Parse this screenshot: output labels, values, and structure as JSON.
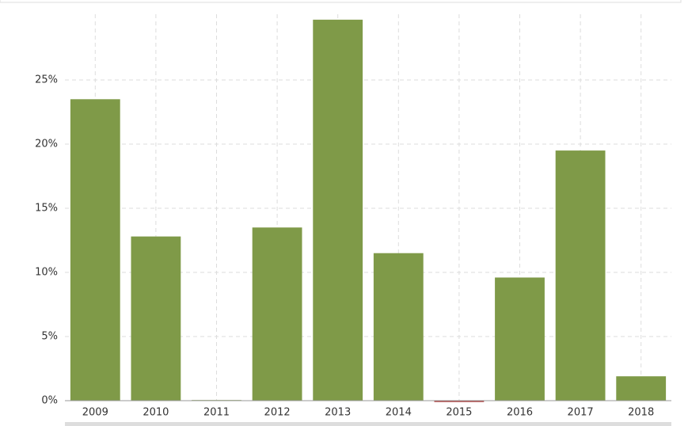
{
  "chart_data": {
    "type": "bar",
    "categories": [
      "2009",
      "2010",
      "2011",
      "2012",
      "2013",
      "2014",
      "2015",
      "2016",
      "2017",
      "2018"
    ],
    "values": [
      23.5,
      12.8,
      0.05,
      13.5,
      29.7,
      11.5,
      -0.1,
      9.6,
      19.5,
      1.9
    ],
    "color": "#7f9a48",
    "negative_color": "#a52a2a",
    "ylim": [
      0,
      30
    ],
    "yticks": [
      {
        "value": 0,
        "label": "0%"
      },
      {
        "value": 5,
        "label": "5%"
      },
      {
        "value": 10,
        "label": "10%"
      },
      {
        "value": 15,
        "label": "15%"
      },
      {
        "value": 20,
        "label": "20%"
      },
      {
        "value": 25,
        "label": "25%"
      }
    ],
    "grid": true
  }
}
